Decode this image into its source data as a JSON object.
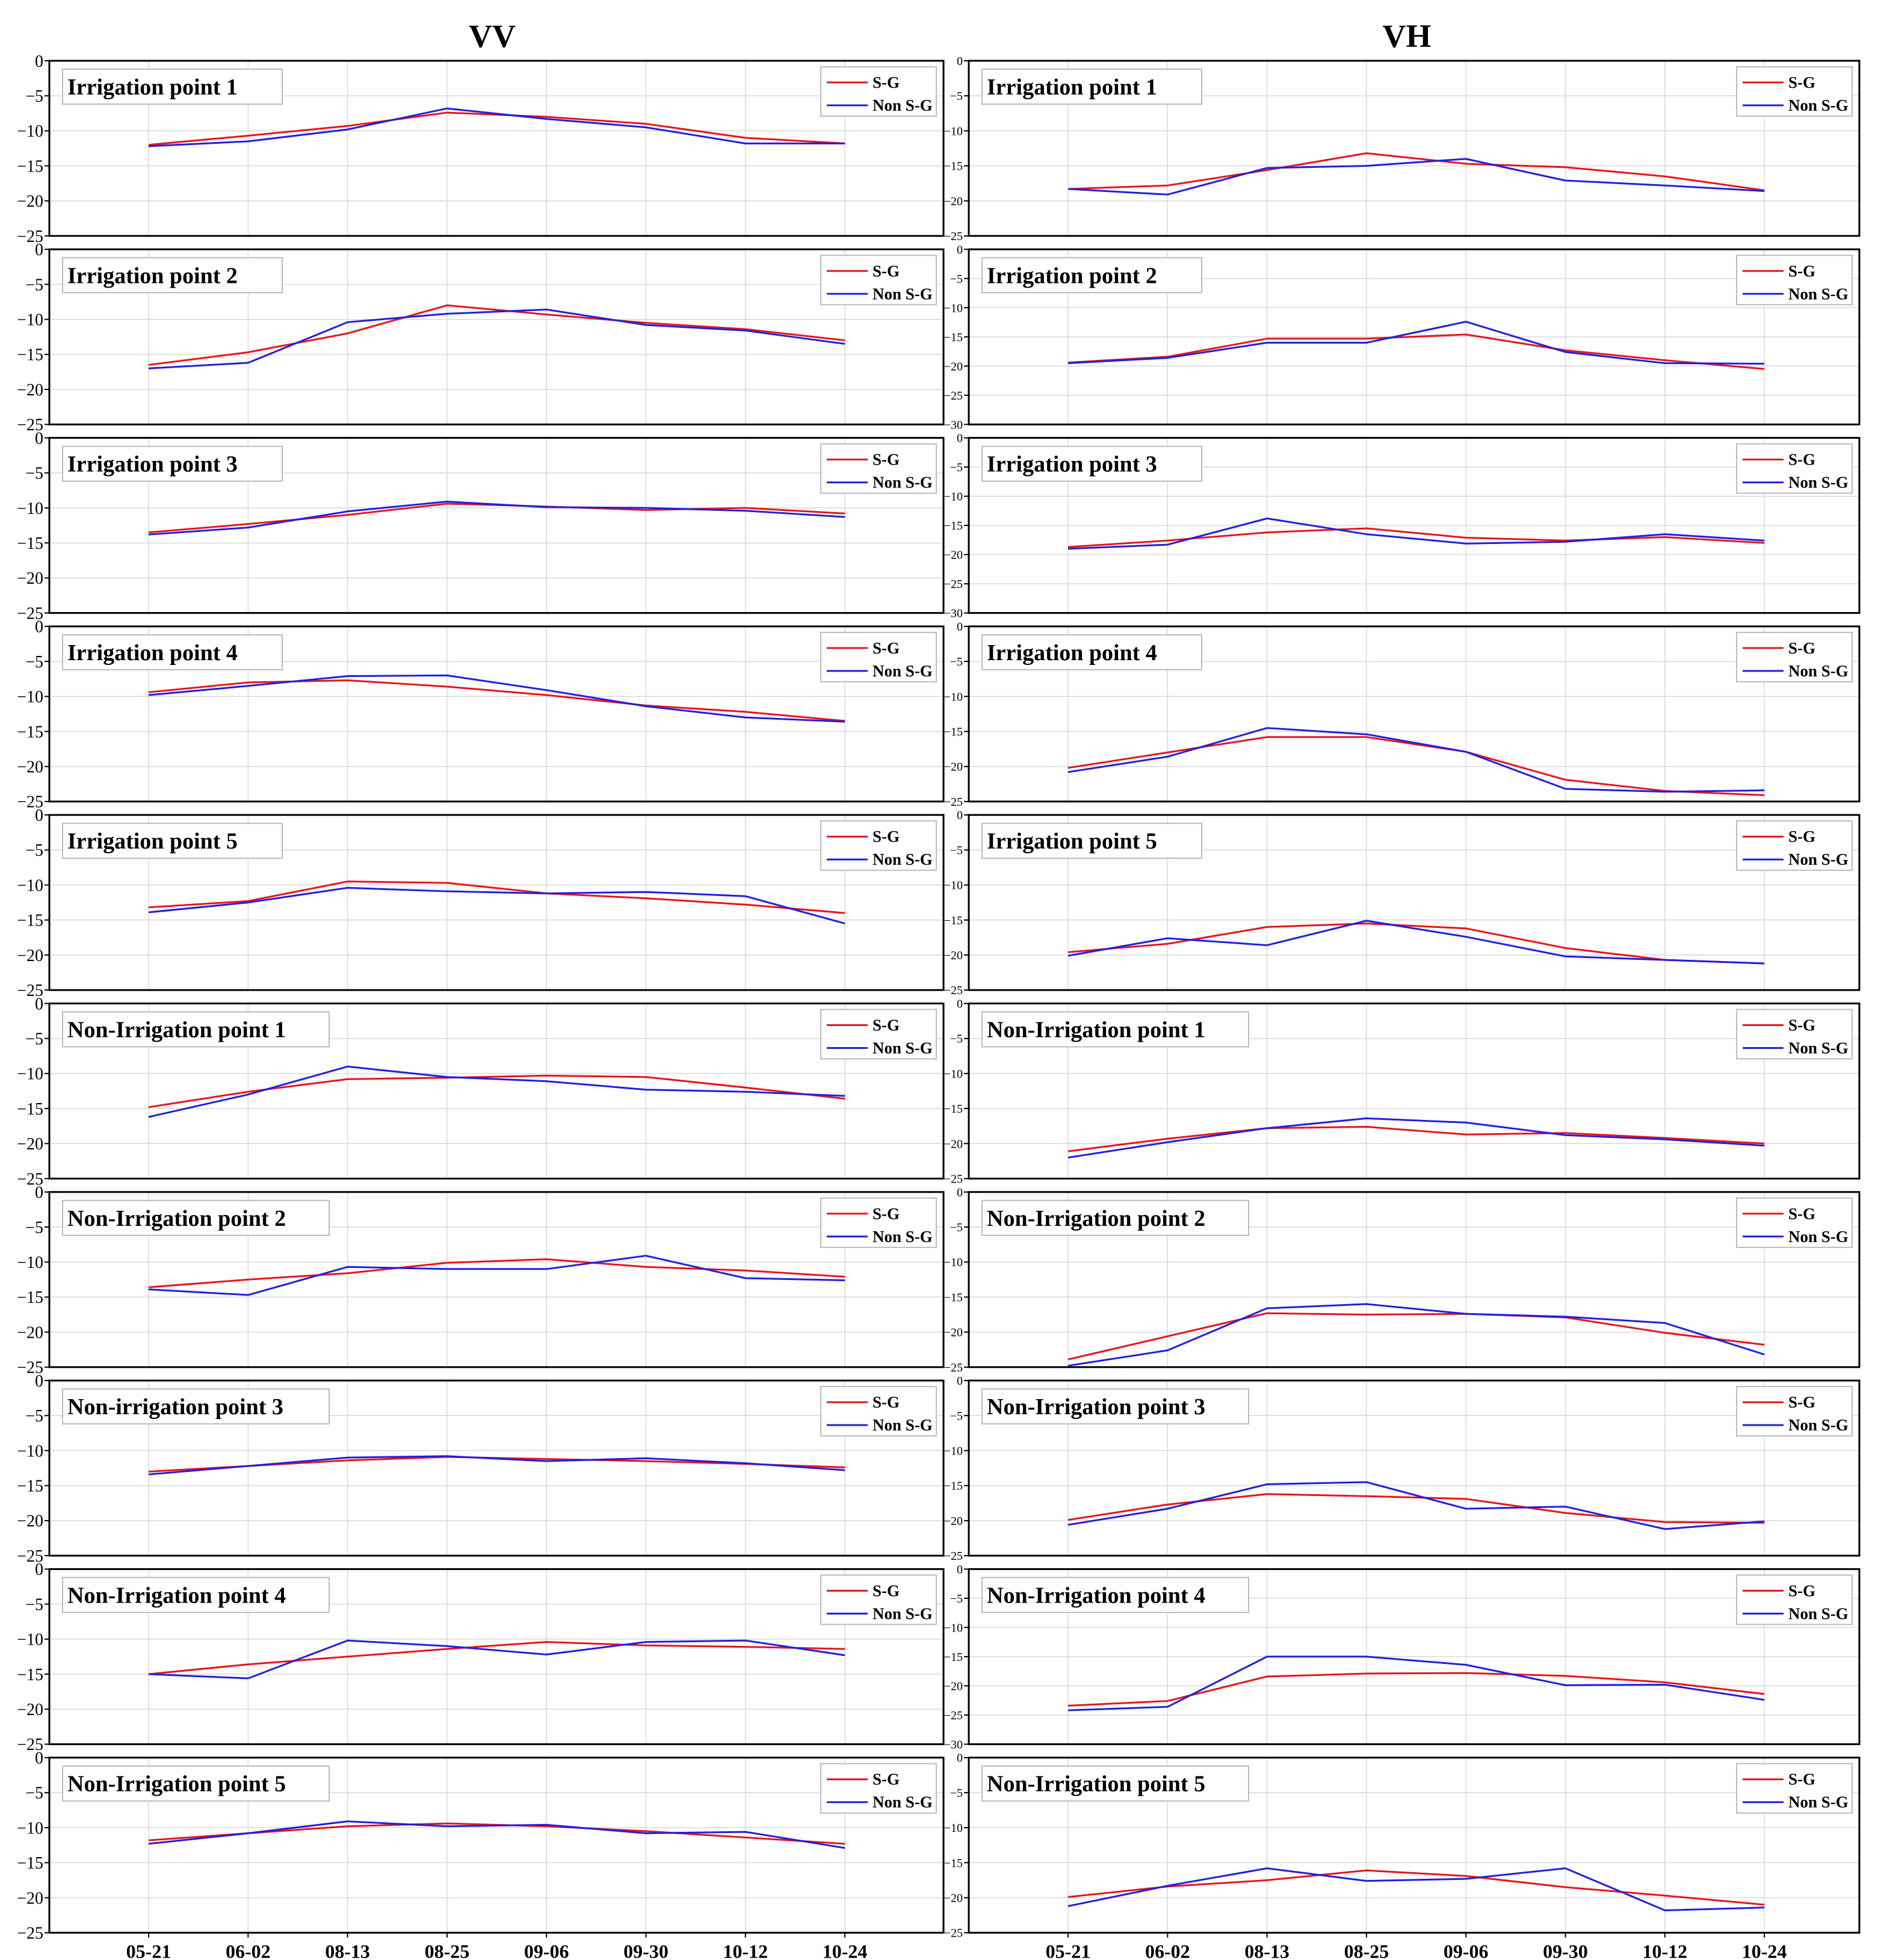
{
  "chart_data": {
    "type": "line",
    "columns": [
      "VV",
      "VH"
    ],
    "categories": [
      "05-21",
      "06-02",
      "08-13",
      "08-25",
      "09-06",
      "09-30",
      "10-12",
      "10-24"
    ],
    "colors": {
      "S-G": "#e8141a",
      "Non S-G": "#1f1fe0"
    },
    "series_names": [
      "S-G",
      "Non S-G"
    ],
    "ylim_vv": [
      -25,
      0
    ],
    "yticks_vv": [
      0,
      -5,
      -10,
      -15,
      -20,
      -25
    ],
    "panels": [
      {
        "label": "Irrigation point 1",
        "vv": {
          "S-G": [
            -12.0,
            -10.7,
            -9.3,
            -7.4,
            -8.0,
            -9.0,
            -11.0,
            -11.8
          ],
          "Non S-G": [
            -12.2,
            -11.5,
            -9.8,
            -6.8,
            -8.3,
            -9.5,
            -11.8,
            -11.8
          ]
        },
        "vh": {
          "ylim": [
            -25,
            0
          ],
          "yticks": [
            0,
            -5,
            -10,
            -15,
            -20,
            -25
          ],
          "S-G": [
            -18.3,
            -17.8,
            -15.6,
            -13.2,
            -14.7,
            -15.2,
            -16.5,
            -18.5
          ],
          "Non S-G": [
            -18.3,
            -19.1,
            -15.3,
            -15.0,
            -14.0,
            -17.1,
            -17.8,
            -18.6
          ]
        }
      },
      {
        "label": "Irrigation point 2",
        "vv": {
          "S-G": [
            -16.5,
            -14.7,
            -12.0,
            -8.0,
            -9.3,
            -10.5,
            -11.4,
            -13.0
          ],
          "Non S-G": [
            -17.0,
            -16.2,
            -10.4,
            -9.2,
            -8.6,
            -10.8,
            -11.6,
            -13.5
          ]
        },
        "vh": {
          "ylim": [
            -30,
            0
          ],
          "yticks": [
            0,
            -5,
            -10,
            -15,
            -20,
            -25,
            -30
          ],
          "S-G": [
            -19.4,
            -18.4,
            -15.3,
            -15.3,
            -14.6,
            -17.3,
            -19.0,
            -20.5
          ],
          "Non S-G": [
            -19.5,
            -18.6,
            -16.0,
            -16.0,
            -12.4,
            -17.6,
            -19.5,
            -19.6
          ]
        }
      },
      {
        "label": "Irrigation point 3",
        "vv": {
          "S-G": [
            -13.5,
            -12.3,
            -11.0,
            -9.4,
            -9.8,
            -10.3,
            -10.0,
            -10.8
          ],
          "Non S-G": [
            -13.8,
            -12.8,
            -10.5,
            -9.1,
            -9.9,
            -10.0,
            -10.4,
            -11.3
          ]
        },
        "vh": {
          "ylim": [
            -30,
            0
          ],
          "yticks": [
            0,
            -5,
            -10,
            -15,
            -20,
            -25,
            -30
          ],
          "S-G": [
            -18.7,
            -17.6,
            -16.2,
            -15.5,
            -17.1,
            -17.6,
            -17.0,
            -18.0
          ],
          "Non S-G": [
            -19.0,
            -18.3,
            -13.8,
            -16.5,
            -18.1,
            -17.8,
            -16.5,
            -17.6
          ]
        }
      },
      {
        "label": "Irrigation point 4",
        "vv": {
          "S-G": [
            -9.4,
            -8.0,
            -7.7,
            -8.6,
            -9.8,
            -11.3,
            -12.2,
            -13.5
          ],
          "Non S-G": [
            -9.8,
            -8.5,
            -7.1,
            -7.0,
            -9.1,
            -11.4,
            -13.0,
            -13.6
          ]
        },
        "vh": {
          "ylim": [
            -25,
            0
          ],
          "yticks": [
            0,
            -5,
            -10,
            -15,
            -20,
            -25
          ],
          "S-G": [
            -20.2,
            -18.0,
            -15.8,
            -15.8,
            -17.9,
            -21.9,
            -23.5,
            -24.1
          ],
          "Non S-G": [
            -20.8,
            -18.6,
            -14.5,
            -15.4,
            -17.9,
            -23.2,
            -23.6,
            -23.4
          ]
        }
      },
      {
        "label": "Irrigation point 5",
        "vv": {
          "S-G": [
            -13.2,
            -12.3,
            -9.5,
            -9.7,
            -11.2,
            -11.9,
            -12.8,
            -14.0
          ],
          "Non S-G": [
            -13.9,
            -12.5,
            -10.4,
            -10.9,
            -11.2,
            -11.0,
            -11.6,
            -15.5
          ]
        },
        "vh": {
          "ylim": [
            -25,
            0
          ],
          "yticks": [
            0,
            -5,
            -10,
            -15,
            -20,
            -25
          ],
          "S-G": [
            -19.6,
            -18.4,
            -16.0,
            -15.5,
            -16.2,
            -19.0,
            -20.7,
            -21.2
          ],
          "Non S-G": [
            -20.1,
            -17.6,
            -18.6,
            -15.1,
            -17.4,
            -20.2,
            -20.7,
            -21.2
          ]
        }
      },
      {
        "label": "Non-Irrigation point 1",
        "vv": {
          "S-G": [
            -14.8,
            -12.6,
            -10.8,
            -10.6,
            -10.3,
            -10.5,
            -12.0,
            -13.6
          ],
          "Non S-G": [
            -16.2,
            -13.0,
            -9.0,
            -10.5,
            -11.1,
            -12.3,
            -12.6,
            -13.2
          ]
        },
        "vh": {
          "ylim": [
            -25,
            0
          ],
          "yticks": [
            0,
            -5,
            -10,
            -15,
            -20,
            -25
          ],
          "S-G": [
            -21.1,
            -19.3,
            -17.8,
            -17.6,
            -18.7,
            -18.5,
            -19.2,
            -20.0
          ],
          "Non S-G": [
            -22.0,
            -19.8,
            -17.8,
            -16.4,
            -17.0,
            -18.8,
            -19.4,
            -20.3
          ]
        }
      },
      {
        "label": "Non-Irrigation point 2",
        "vv": {
          "S-G": [
            -13.6,
            -12.5,
            -11.6,
            -10.1,
            -9.6,
            -10.7,
            -11.2,
            -12.1
          ],
          "Non S-G": [
            -13.9,
            -14.7,
            -10.7,
            -11.0,
            -11.0,
            -9.1,
            -12.3,
            -12.6
          ]
        },
        "vh": {
          "ylim": [
            -25,
            0
          ],
          "yticks": [
            0,
            -5,
            -10,
            -15,
            -20,
            -25
          ],
          "S-G": [
            -23.9,
            -20.6,
            -17.3,
            -17.5,
            -17.4,
            -17.9,
            -20.1,
            -21.8
          ],
          "Non S-G": [
            -24.8,
            -22.6,
            -16.6,
            -16.0,
            -17.4,
            -17.8,
            -18.7,
            -23.2
          ]
        }
      },
      {
        "label": "Non-irrigation point 3",
        "displayLabel": "Non-Irrigation point 3",
        "vv": {
          "S-G": [
            -13.0,
            -12.2,
            -11.4,
            -10.9,
            -11.2,
            -11.5,
            -11.9,
            -12.4
          ],
          "Non S-G": [
            -13.4,
            -12.2,
            -11.0,
            -10.8,
            -11.5,
            -11.1,
            -11.8,
            -12.8
          ]
        },
        "vh": {
          "ylim": [
            -25,
            0
          ],
          "yticks": [
            0,
            -5,
            -10,
            -15,
            -20,
            -25
          ],
          "S-G": [
            -19.9,
            -17.7,
            -16.2,
            -16.5,
            -16.9,
            -18.9,
            -20.2,
            -20.3
          ],
          "Non S-G": [
            -20.6,
            -18.3,
            -14.8,
            -14.5,
            -18.3,
            -18.0,
            -21.2,
            -20.1
          ]
        }
      },
      {
        "label": "Non-Irrigation point 4",
        "vv": {
          "S-G": [
            -15.0,
            -13.6,
            -12.5,
            -11.4,
            -10.4,
            -10.9,
            -11.1,
            -11.4
          ],
          "Non S-G": [
            -15.0,
            -15.6,
            -10.2,
            -11.0,
            -12.2,
            -10.4,
            -10.2,
            -12.3
          ]
        },
        "vh": {
          "ylim": [
            -30,
            0
          ],
          "yticks": [
            0,
            -5,
            -10,
            -15,
            -20,
            -25,
            -30
          ],
          "S-G": [
            -23.4,
            -22.6,
            -18.4,
            -17.9,
            -17.8,
            -18.3,
            -19.4,
            -21.4
          ],
          "Non S-G": [
            -24.2,
            -23.6,
            -15.0,
            -15.0,
            -16.4,
            -19.9,
            -19.8,
            -22.4
          ]
        }
      },
      {
        "label": "Non-Irrigation point 5",
        "vv": {
          "S-G": [
            -11.8,
            -10.8,
            -9.8,
            -9.4,
            -9.8,
            -10.5,
            -11.4,
            -12.3
          ],
          "Non S-G": [
            -12.3,
            -10.8,
            -9.1,
            -9.8,
            -9.6,
            -10.8,
            -10.6,
            -12.9
          ]
        },
        "vh": {
          "ylim": [
            -25,
            0
          ],
          "yticks": [
            0,
            -5,
            -10,
            -15,
            -20,
            -25
          ],
          "S-G": [
            -19.9,
            -18.4,
            -17.5,
            -16.1,
            -16.9,
            -18.5,
            -19.7,
            -21.0
          ],
          "Non S-G": [
            -21.2,
            -18.3,
            -15.8,
            -17.6,
            -17.3,
            -15.8,
            -21.8,
            -21.4
          ]
        }
      }
    ]
  }
}
